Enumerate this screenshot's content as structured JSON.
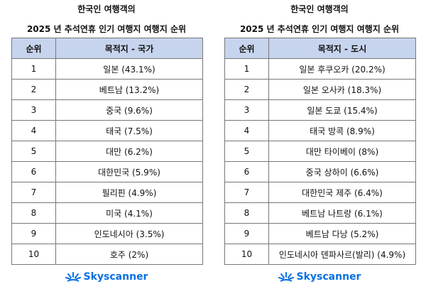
{
  "brand_color": "#0770e3",
  "tables": [
    {
      "title_line1": "한국인 여행객의",
      "title_line2": "2025 년 추석연휴 인기 여행지 여행지 순위",
      "col_rank": "순위",
      "col_dest": "목적지 - 국가",
      "rows": [
        [
          "1",
          "일본 (43.1%)"
        ],
        [
          "2",
          "베트남 (13.2%)"
        ],
        [
          "3",
          "중국 (9.6%)"
        ],
        [
          "4",
          "태국 (7.5%)"
        ],
        [
          "5",
          "대만 (6.2%)"
        ],
        [
          "6",
          "대한민국 (5.9%)"
        ],
        [
          "7",
          "필리핀 (4.9%)"
        ],
        [
          "8",
          "미국 (4.1%)"
        ],
        [
          "9",
          "인도네시아 (3.5%)"
        ],
        [
          "10",
          "호주 (2%)"
        ]
      ],
      "logo": "Skyscanner"
    },
    {
      "title_line1": "한국인 여행객의",
      "title_line2": "2025 년 추석연휴 인기 여행지 여행지 순위",
      "col_rank": "순위",
      "col_dest": "목적지 - 도시",
      "rows": [
        [
          "1",
          "일본 후쿠오카 (20.2%)"
        ],
        [
          "2",
          "일본 오사카 (18.3%)"
        ],
        [
          "3",
          "일본 도쿄 (15.4%)"
        ],
        [
          "4",
          "태국 방콕 (8.9%)"
        ],
        [
          "5",
          "대만 타이베이 (8%)"
        ],
        [
          "6",
          "중국 상하이 (6.6%)"
        ],
        [
          "7",
          "대한민국 제주 (6.4%)"
        ],
        [
          "8",
          "베트남 나트랑 (6.1%)"
        ],
        [
          "9",
          "베트남 다낭 (5.2%)"
        ],
        [
          "10",
          "인도네시아 덴파사르(발리) (4.9%)"
        ]
      ],
      "logo": "Skyscanner"
    }
  ]
}
